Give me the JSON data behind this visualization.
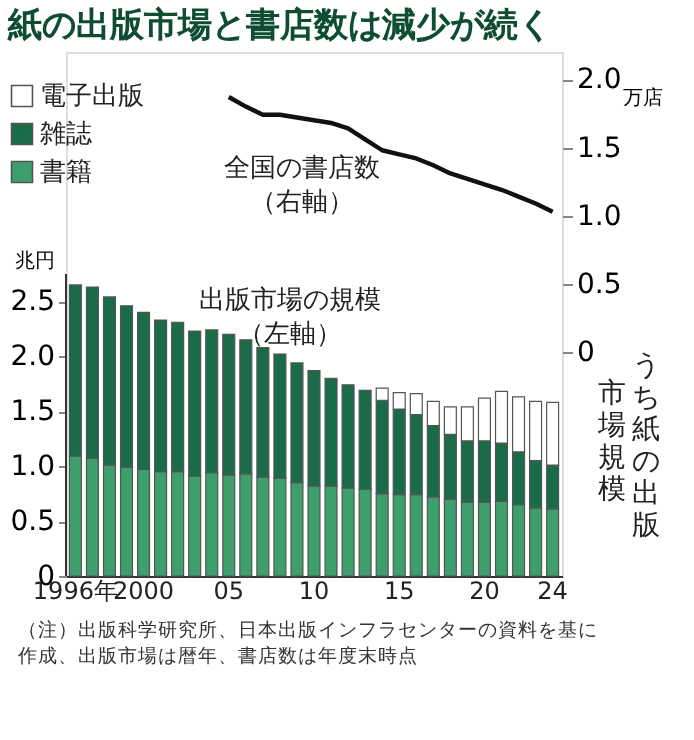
{
  "chart_data": {
    "type": "bar",
    "title": "紙の出版市場と書店数は減少が続く",
    "ylabel": "兆円",
    "y2label": "万店",
    "stacked": true,
    "legend": "top left",
    "grid": false,
    "categories": [
      "1996年",
      null,
      null,
      null,
      "2000",
      null,
      null,
      null,
      null,
      "05",
      null,
      null,
      null,
      null,
      "10",
      null,
      null,
      null,
      null,
      "15",
      null,
      null,
      null,
      null,
      "20",
      null,
      null,
      null,
      "24"
    ],
    "series": [
      {
        "name": "書籍",
        "color": "#3d9f6c",
        "values": [
          1.09,
          1.07,
          1.01,
          0.99,
          0.97,
          0.95,
          0.95,
          0.91,
          0.94,
          0.92,
          0.93,
          0.9,
          0.89,
          0.85,
          0.82,
          0.82,
          0.8,
          0.79,
          0.75,
          0.74,
          0.74,
          0.72,
          0.7,
          0.67,
          0.67,
          0.68,
          0.65,
          0.62,
          0.61
        ]
      },
      {
        "name": "雑誌",
        "color": "#1a6b48",
        "values": [
          1.56,
          1.56,
          1.53,
          1.47,
          1.43,
          1.38,
          1.36,
          1.32,
          1.3,
          1.28,
          1.22,
          1.18,
          1.13,
          1.09,
          1.05,
          0.98,
          0.94,
          0.9,
          0.85,
          0.78,
          0.73,
          0.65,
          0.59,
          0.56,
          0.56,
          0.53,
          0.48,
          0.43,
          0.4
        ]
      },
      {
        "name": "電子出版",
        "color": "#ffffff",
        "values": [
          null,
          null,
          null,
          null,
          null,
          null,
          null,
          null,
          null,
          null,
          null,
          null,
          null,
          null,
          null,
          null,
          null,
          null,
          0.11,
          0.15,
          0.19,
          0.22,
          0.25,
          0.31,
          0.39,
          0.47,
          0.5,
          0.54,
          0.57
        ]
      },
      {
        "type": "line",
        "axis": "y2",
        "color": "#111111",
        "values": [
          null,
          null,
          null,
          null,
          null,
          null,
          null,
          null,
          null,
          1.87,
          1.8,
          1.74,
          1.74,
          1.72,
          1.7,
          1.68,
          1.64,
          1.56,
          1.48,
          1.45,
          1.42,
          1.37,
          1.31,
          1.27,
          1.23,
          1.19,
          1.14,
          1.09,
          1.03
        ]
      }
    ],
    "ylim": [
      0,
      4.77
    ],
    "yticks": [
      0,
      {
        "value": 0.5,
        "label": "0.5"
      },
      {
        "value": 1.0,
        "label": "1.0"
      },
      {
        "value": 1.5,
        "label": "1.5"
      },
      {
        "value": 2.0,
        "label": "2.0"
      },
      {
        "value": 2.5,
        "label": "2.5"
      }
    ],
    "y2lim": [
      -1.64,
      2.2
    ],
    "y2ticks": [
      0,
      {
        "value": 0.5,
        "label": "0.5"
      },
      {
        "value": 1.0,
        "label": "1.0"
      },
      {
        "value": 1.5,
        "label": "1.5"
      },
      {
        "value": 2.0,
        "label": "2.0"
      }
    ],
    "annotations": [
      "全国の書店数",
      "（右軸）",
      "出版市場の規模",
      "（左軸）",
      "うち紙の出版",
      "市場規模",
      "（注）出版科学研究所、日本出版インフラセンターの資料を基に作成、出版市場は暦年、書店数は年度末時点"
    ]
  }
}
